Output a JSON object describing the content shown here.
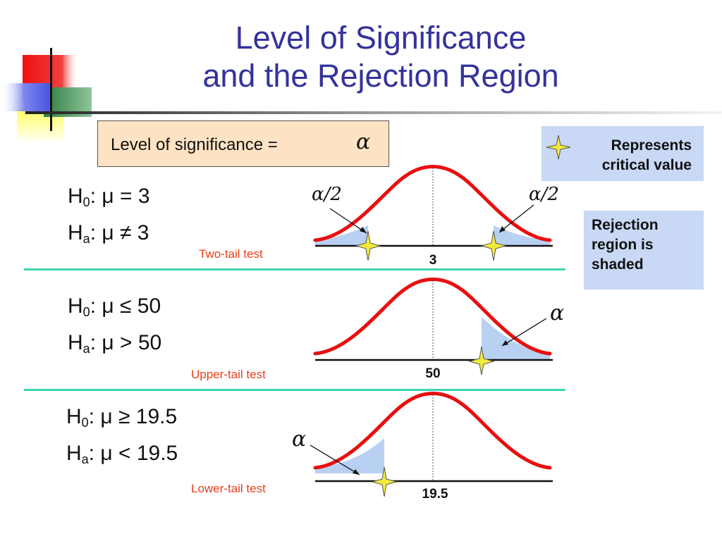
{
  "title": {
    "line1": "Level of Significance",
    "line2": "and the Rejection Region"
  },
  "significance_box": {
    "label": "Level of significance =",
    "symbol": "α"
  },
  "legend": {
    "critical": {
      "line1": "Represents",
      "line2": "critical value",
      "icon": "star-icon"
    },
    "rejection": {
      "line1": "Rejection",
      "line2": "region is",
      "line3": "shaded"
    }
  },
  "panels": [
    {
      "h0": {
        "prefix": "H",
        "sub": "0",
        "text": ": μ = 3"
      },
      "ha": {
        "prefix": "H",
        "sub": "a",
        "text": ": μ ≠ 3"
      },
      "test": "Two-tail test",
      "center_label": "3",
      "tail_labels": [
        "α/2",
        "α/2"
      ]
    },
    {
      "h0": {
        "prefix": "H",
        "sub": "0",
        "text": ": μ ≤ 50"
      },
      "ha": {
        "prefix": "H",
        "sub": "a",
        "text": ": μ > 50"
      },
      "test": "Upper-tail test",
      "center_label": "50",
      "tail_labels": [
        "α"
      ]
    },
    {
      "h0": {
        "prefix": "H",
        "sub": "0",
        "text": ": μ ≥ 19.5"
      },
      "ha": {
        "prefix": "H",
        "sub": "a",
        "text": ": μ < 19.5"
      },
      "test": "Lower-tail test",
      "center_label": "19.5",
      "tail_labels": [
        "α"
      ]
    }
  ],
  "colors": {
    "title": "#33339a",
    "curve": "#e80f0f",
    "shade": "#b8d0f2",
    "star": "#f2ea3a",
    "separator": "#3cd6b4",
    "test_label": "#e8401c"
  }
}
